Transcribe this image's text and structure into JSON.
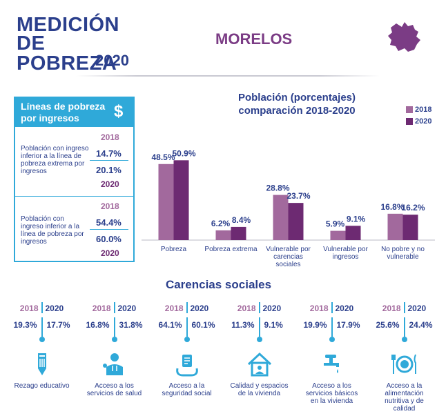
{
  "header": {
    "logo_line1": "MEDICIÓN",
    "logo_line2": "DE POBREZA",
    "logo_year": "2020",
    "state_name": "MORELOS"
  },
  "colors": {
    "accent_blue": "#2fa9d9",
    "navy": "#2b3f8c",
    "bar_2018": "#a2699d",
    "bar_2020": "#6d2a72"
  },
  "lineas": {
    "title": "Líneas de pobreza por ingresos",
    "icon": "dollar-sign-icon",
    "rows": [
      {
        "year_a": "2018",
        "desc": "Población con ingreso inferior a la línea de pobreza extrema por ingresos",
        "val_a": "14.7%",
        "val_b": "20.1%",
        "year_b": "2020"
      },
      {
        "year_a": "2018",
        "desc": "Población con ingreso inferior a la línea de pobreza por ingresos",
        "val_a": "54.4%",
        "val_b": "60.0%",
        "year_b": "2020"
      }
    ]
  },
  "chart_data": {
    "type": "bar",
    "title": "Población (porcentajes) comparación 2018-2020",
    "categories": [
      "Pobreza",
      "Pobreza extrema",
      "Vulnerable por carencias sociales",
      "Vulnerable por ingresos",
      "No pobre y no vulnerable"
    ],
    "series": [
      {
        "name": "2018",
        "values": [
          48.5,
          6.2,
          28.8,
          5.9,
          16.8
        ],
        "labels": [
          "48.5%",
          "6.2%",
          "28.8%",
          "5.9%",
          "16.8%"
        ]
      },
      {
        "name": "2020",
        "values": [
          50.9,
          8.4,
          23.7,
          9.1,
          16.2
        ],
        "labels": [
          "50.9%",
          "8.4%",
          "23.7%",
          "9.1%",
          "16.2%"
        ]
      }
    ],
    "legend": "top-right",
    "ylim": [
      0,
      55
    ],
    "grid": false
  },
  "carencias": {
    "title": "Carencias sociales",
    "items": [
      {
        "y18": "2018",
        "y20": "2020",
        "v18": "19.3%",
        "v20": "17.7%",
        "label": "Rezago educativo",
        "icon": "pencil-icon"
      },
      {
        "y18": "2018",
        "y20": "2020",
        "v18": "16.8%",
        "v20": "31.8%",
        "label": "Acceso a los servicios de salud",
        "icon": "doctor-icon"
      },
      {
        "y18": "2018",
        "y20": "2020",
        "v18": "64.1%",
        "v20": "60.1%",
        "label": "Acceso a la seguridad social",
        "icon": "social-security-icon"
      },
      {
        "y18": "2018",
        "y20": "2020",
        "v18": "11.3%",
        "v20": "9.1%",
        "label": "Calidad y espacios de la vivienda",
        "icon": "house-icon"
      },
      {
        "y18": "2018",
        "y20": "2020",
        "v18": "19.9%",
        "v20": "17.9%",
        "label": "Acceso a los servicios básicos en la vivienda",
        "icon": "water-tap-icon"
      },
      {
        "y18": "2018",
        "y20": "2020",
        "v18": "25.6%",
        "v20": "24.4%",
        "label": "Acceso a la alimentación nutritiva y de calidad",
        "icon": "food-plate-icon"
      }
    ]
  }
}
